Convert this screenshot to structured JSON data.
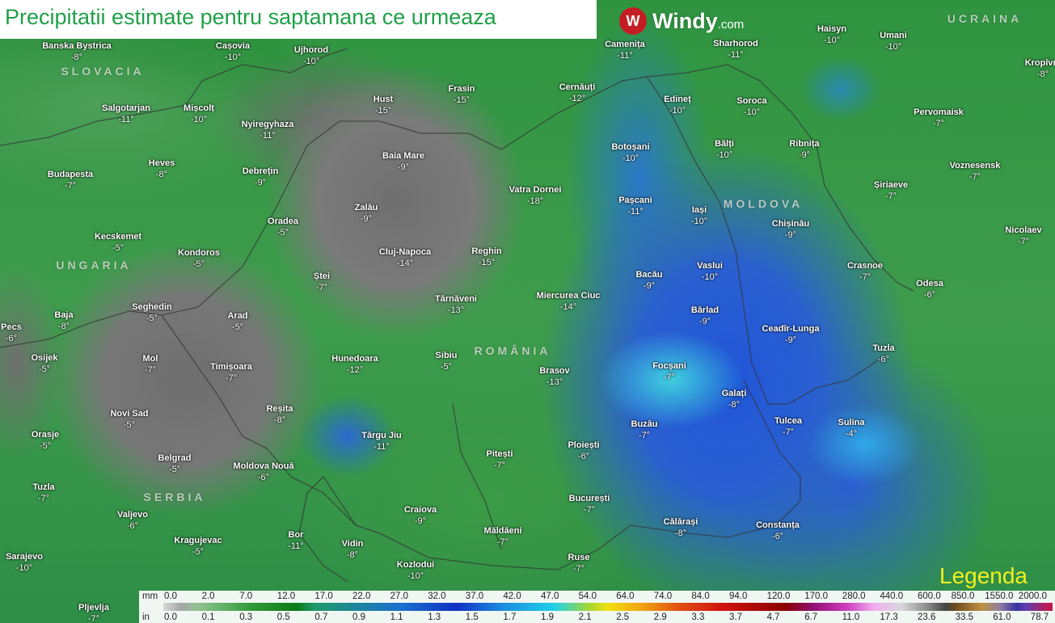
{
  "title": "Precipitatii estimate pentru saptamana ce urmeaza",
  "logo": {
    "brand": "Windy",
    "suffix": ".com",
    "mark": "W"
  },
  "legend": {
    "title": "Legenda",
    "unit_mm": "mm",
    "unit_in": "in",
    "mm": [
      "0.0",
      "2.0",
      "7.0",
      "12.0",
      "17.0",
      "22.0",
      "27.0",
      "32.0",
      "37.0",
      "42.0",
      "47.0",
      "54.0",
      "64.0",
      "74.0",
      "84.0",
      "94.0",
      "120.0",
      "170.0",
      "280.0",
      "440.0",
      "600.0",
      "850.0",
      "1550.0",
      "2000.0"
    ],
    "in": [
      "0.0",
      "0.1",
      "0.3",
      "0.5",
      "0.7",
      "0.9",
      "1.1",
      "1.3",
      "1.5",
      "1.7",
      "1.9",
      "2.1",
      "2.5",
      "2.9",
      "3.3",
      "3.7",
      "4.7",
      "6.7",
      "11.0",
      "17.3",
      "23.6",
      "33.5",
      "61.0",
      "78.7"
    ]
  },
  "countries": [
    "SLOVACIA",
    "UNGARIA",
    "ROMÂNIA",
    "MOLDOVA",
    "UCRAINA",
    "SERBIA"
  ],
  "cities": [
    {
      "name": "Banska Bystrica",
      "temp": "-8°"
    },
    {
      "name": "Cașovia",
      "temp": "-10°"
    },
    {
      "name": "Ujhorod",
      "temp": "-10°"
    },
    {
      "name": "Salgotarjan",
      "temp": "-11°"
    },
    {
      "name": "Mișcolț",
      "temp": "-10°"
    },
    {
      "name": "Nyiregyhaza",
      "temp": "-11°"
    },
    {
      "name": "Heves",
      "temp": "-8°"
    },
    {
      "name": "Debrețin",
      "temp": "-9°"
    },
    {
      "name": "Budapesta",
      "temp": "-7°"
    },
    {
      "name": "Hust",
      "temp": "-15°"
    },
    {
      "name": "Frasin",
      "temp": "-15°"
    },
    {
      "name": "Baia Mare",
      "temp": "-9°"
    },
    {
      "name": "Cernăuți",
      "temp": "-12°"
    },
    {
      "name": "Camenița",
      "temp": "-11°"
    },
    {
      "name": "Sharhorod",
      "temp": "-11°"
    },
    {
      "name": "Haisyn",
      "temp": "-10°"
    },
    {
      "name": "Umani",
      "temp": "-10°"
    },
    {
      "name": "Kropîvni",
      "temp": "-8°"
    },
    {
      "name": "Edineț",
      "temp": "-10°"
    },
    {
      "name": "Soroca",
      "temp": "-10°"
    },
    {
      "name": "Pervomaisk",
      "temp": "-7°"
    },
    {
      "name": "Botoșani",
      "temp": "-10°"
    },
    {
      "name": "Bălți",
      "temp": "-10°"
    },
    {
      "name": "Ribnița",
      "temp": "-9°"
    },
    {
      "name": "Voznesensk",
      "temp": "-7°"
    },
    {
      "name": "Șiriaeve",
      "temp": "-7°"
    },
    {
      "name": "Vatra Dornei",
      "temp": "-18°"
    },
    {
      "name": "Pașcani",
      "temp": "-11°"
    },
    {
      "name": "Iași",
      "temp": "-10°"
    },
    {
      "name": "Chișinău",
      "temp": "-9°"
    },
    {
      "name": "Nicolaev",
      "temp": "-7°"
    },
    {
      "name": "Oradea",
      "temp": "-5°"
    },
    {
      "name": "Zalău",
      "temp": "-9°"
    },
    {
      "name": "Kecskemet",
      "temp": "-5°"
    },
    {
      "name": "Kondoros",
      "temp": "-5°"
    },
    {
      "name": "Cluj-Napoca",
      "temp": "-14°"
    },
    {
      "name": "Reghin",
      "temp": "-15°"
    },
    {
      "name": "Ștei",
      "temp": "-7°"
    },
    {
      "name": "Bacău",
      "temp": "-9°"
    },
    {
      "name": "Vaslui",
      "temp": "-10°"
    },
    {
      "name": "Crasnoe",
      "temp": "-7°"
    },
    {
      "name": "Odesa",
      "temp": "-6°"
    },
    {
      "name": "Miercurea Ciuc",
      "temp": "-14°"
    },
    {
      "name": "Târnăveni",
      "temp": "-13°"
    },
    {
      "name": "Baja",
      "temp": "-8°"
    },
    {
      "name": "Seghedin",
      "temp": "-5°"
    },
    {
      "name": "Arad",
      "temp": "-5°"
    },
    {
      "name": "Bârlad",
      "temp": "-9°"
    },
    {
      "name": "Ceadîr-Lunga",
      "temp": "-9°"
    },
    {
      "name": "Pecs",
      "temp": "-6°"
    },
    {
      "name": "Tuzla",
      "temp": "-6°"
    },
    {
      "name": "Mol",
      "temp": "-7°"
    },
    {
      "name": "Timișoara",
      "temp": "-7°"
    },
    {
      "name": "Hunedoara",
      "temp": "-12°"
    },
    {
      "name": "Sibiu",
      "temp": "-5°"
    },
    {
      "name": "Brasov",
      "temp": "-13°"
    },
    {
      "name": "Focșani",
      "temp": "-7°"
    },
    {
      "name": "Galați",
      "temp": "-8°"
    },
    {
      "name": "Osijek",
      "temp": "-5°"
    },
    {
      "name": "Novi Sad",
      "temp": "-5°"
    },
    {
      "name": "Reșita",
      "temp": "-8°"
    },
    {
      "name": "Tulcea",
      "temp": "-7°"
    },
    {
      "name": "Sulina",
      "temp": "-4°"
    },
    {
      "name": "Buzău",
      "temp": "-7°"
    },
    {
      "name": "Orasje",
      "temp": "-5°"
    },
    {
      "name": "Târgu Jiu",
      "temp": "-11°"
    },
    {
      "name": "Pitești",
      "temp": "-7°"
    },
    {
      "name": "Ploiești",
      "temp": "-6°"
    },
    {
      "name": "Belgrad",
      "temp": "-5°"
    },
    {
      "name": "Moldova Nouă",
      "temp": "-6°"
    },
    {
      "name": "Tuzla",
      "temp": "-7°"
    },
    {
      "name": "București",
      "temp": "-7°"
    },
    {
      "name": "Craiova",
      "temp": "-9°"
    },
    {
      "name": "Valjevo",
      "temp": "-6°"
    },
    {
      "name": "Călărași",
      "temp": "-8°"
    },
    {
      "name": "Constanța",
      "temp": "-6°"
    },
    {
      "name": "Măldăeni",
      "temp": "-7°"
    },
    {
      "name": "Bor",
      "temp": "-11°"
    },
    {
      "name": "Kragujevac",
      "temp": "-5°"
    },
    {
      "name": "Vidin",
      "temp": "-8°"
    },
    {
      "name": "Sarajevo",
      "temp": "-10°"
    },
    {
      "name": "Ruse",
      "temp": "-7°"
    },
    {
      "name": "Kozlodui",
      "temp": "-10°"
    },
    {
      "name": "Pljevlja",
      "temp": "-7°"
    }
  ],
  "colors": {
    "title_text": "#1fa048",
    "legend_title": "#f2ee20",
    "logo_red": "#c41e24"
  }
}
